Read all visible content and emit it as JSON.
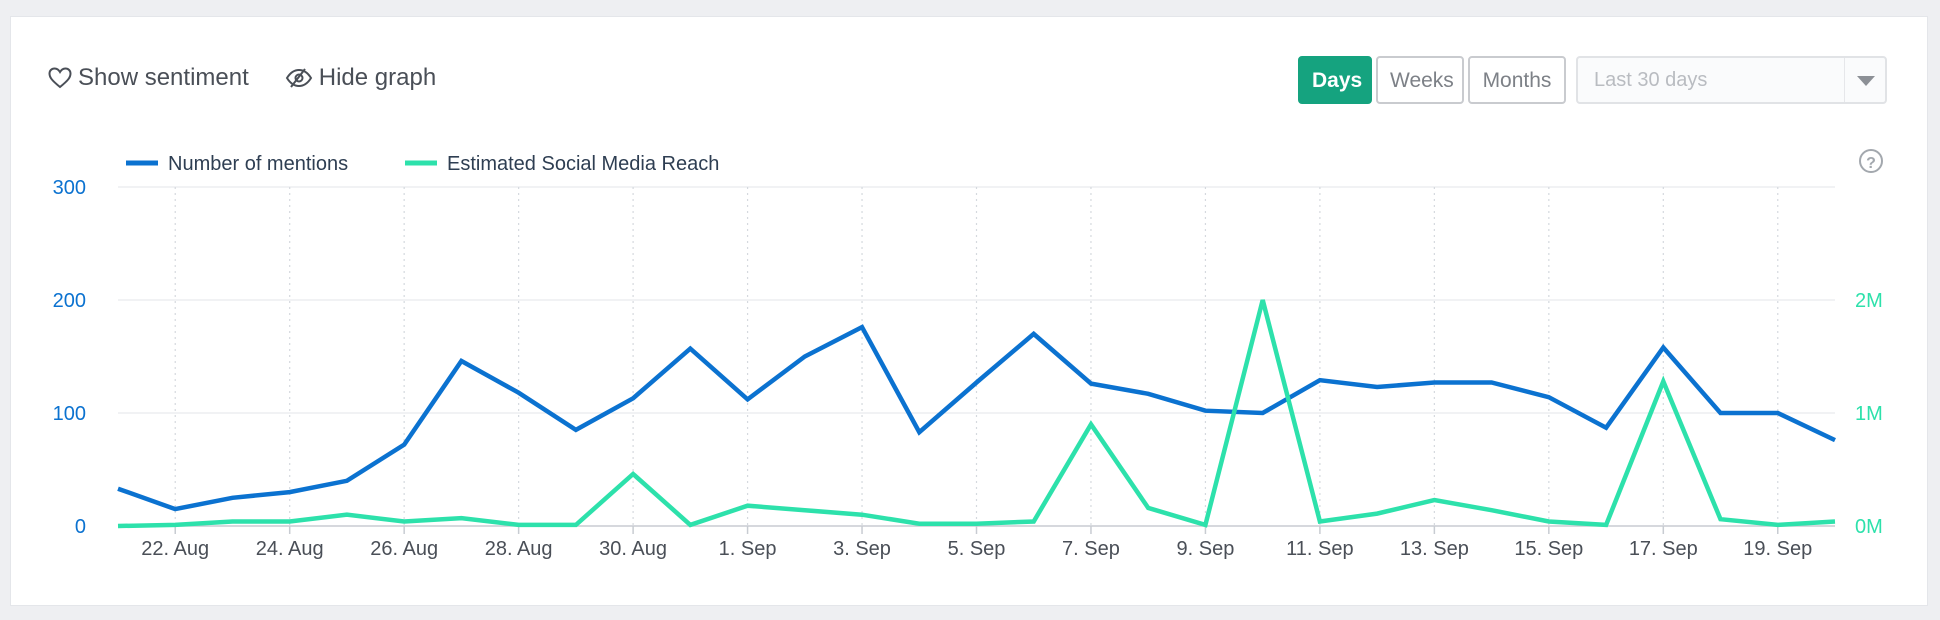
{
  "toolbar": {
    "sentiment_label": "Show sentiment",
    "hide_graph_label": "Hide graph",
    "periods": [
      "Days",
      "Weeks",
      "Months"
    ],
    "active_period": "Days",
    "range_placeholder": "Last 30 days"
  },
  "colors": {
    "mentions": "#0b72d0",
    "reach": "#2de1ab",
    "active_button": "#15a37f"
  },
  "chart_data": {
    "type": "line",
    "legend_position": "top-left",
    "grid": true,
    "x": [
      "21. Aug",
      "22. Aug",
      "23. Aug",
      "24. Aug",
      "25. Aug",
      "26. Aug",
      "27. Aug",
      "28. Aug",
      "29. Aug",
      "30. Aug",
      "31. Aug",
      "1. Sep",
      "2. Sep",
      "3. Sep",
      "4. Sep",
      "5. Sep",
      "6. Sep",
      "7. Sep",
      "8. Sep",
      "9. Sep",
      "10. Sep",
      "11. Sep",
      "12. Sep",
      "13. Sep",
      "14. Sep",
      "15. Sep",
      "16. Sep",
      "17. Sep",
      "18. Sep",
      "19. Sep",
      "20. Sep"
    ],
    "x_tick_labels": [
      "22. Aug",
      "24. Aug",
      "26. Aug",
      "28. Aug",
      "30. Aug",
      "1. Sep",
      "3. Sep",
      "5. Sep",
      "7. Sep",
      "9. Sep",
      "11. Sep",
      "13. Sep",
      "15. Sep",
      "17. Sep",
      "19. Sep"
    ],
    "y_left": {
      "ticks": [
        "0",
        "100",
        "200",
        "300"
      ],
      "range": [
        0,
        300
      ]
    },
    "y_right": {
      "ticks": [
        "0M",
        "1M",
        "2M"
      ],
      "range": [
        0,
        3000000
      ]
    },
    "series": [
      {
        "name": "Number of mentions",
        "axis": "left",
        "values": [
          33,
          15,
          25,
          30,
          40,
          72,
          146,
          118,
          85,
          113,
          157,
          112,
          150,
          176,
          83,
          127,
          170,
          126,
          117,
          102,
          100,
          129,
          123,
          127,
          127,
          114,
          87,
          158,
          100,
          100,
          76
        ]
      },
      {
        "name": "Estimated Social Media Reach",
        "axis": "right",
        "values": [
          0,
          10000,
          40000,
          40000,
          100000,
          40000,
          70000,
          10000,
          10000,
          460000,
          10000,
          180000,
          140000,
          100000,
          20000,
          20000,
          40000,
          900000,
          160000,
          10000,
          2000000,
          40000,
          110000,
          230000,
          140000,
          40000,
          10000,
          1280000,
          60000,
          10000,
          40000
        ]
      }
    ]
  }
}
